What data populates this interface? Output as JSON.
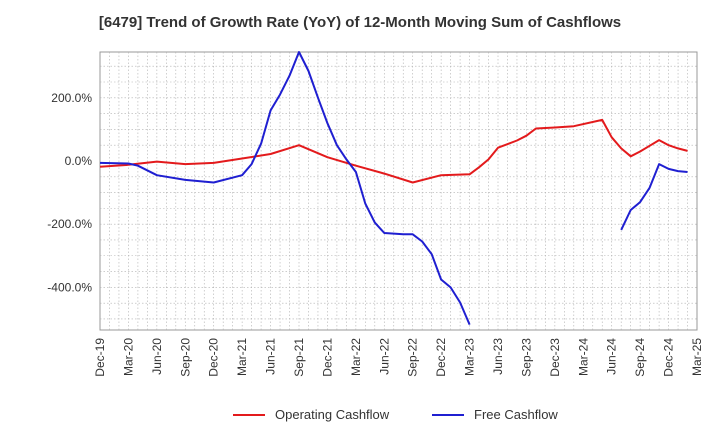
{
  "chart_data": {
    "type": "line",
    "title": "[6479]  Trend of Growth Rate (YoY) of 12-Month Moving Sum of Cashflows",
    "xlabel": "",
    "ylabel": "",
    "x_tick_labels": [
      "Dec-19",
      "Mar-20",
      "Jun-20",
      "Sep-20",
      "Dec-20",
      "Mar-21",
      "Jun-21",
      "Sep-21",
      "Dec-21",
      "Mar-22",
      "Jun-22",
      "Sep-22",
      "Dec-22",
      "Mar-23",
      "Jun-23",
      "Sep-23",
      "Dec-23",
      "Mar-24",
      "Jun-24",
      "Sep-24",
      "Dec-24",
      "Mar-25"
    ],
    "y_ticks": [
      200,
      0,
      -200,
      -400
    ],
    "y_tick_labels": [
      "200.0%",
      "0.0%",
      "-200.0%",
      "-400.0%"
    ],
    "ylim": [
      -535,
      345
    ],
    "x_range": [
      0,
      63
    ],
    "grid": true,
    "legend_position": "bottom-center",
    "series": [
      {
        "name": "Operating Cashflow",
        "color": "#e31a1c",
        "points": [
          [
            0,
            -18
          ],
          [
            3,
            -12
          ],
          [
            6,
            -2
          ],
          [
            9,
            -10
          ],
          [
            12,
            -6
          ],
          [
            15,
            8
          ],
          [
            18,
            22
          ],
          [
            21,
            50
          ],
          [
            24,
            12
          ],
          [
            27,
            -15
          ],
          [
            30,
            -40
          ],
          [
            33,
            -68
          ],
          [
            36,
            -45
          ],
          [
            39,
            -42
          ],
          [
            40,
            -20
          ],
          [
            41,
            5
          ],
          [
            42,
            42
          ],
          [
            44,
            65
          ],
          [
            45,
            80
          ],
          [
            46,
            103
          ],
          [
            48,
            106
          ],
          [
            50,
            110
          ],
          [
            53,
            130
          ],
          [
            54,
            75
          ],
          [
            55,
            40
          ],
          [
            56,
            15
          ],
          [
            57,
            30
          ],
          [
            58,
            48
          ],
          [
            59,
            66
          ],
          [
            60,
            50
          ],
          [
            61,
            40
          ],
          [
            62,
            32
          ]
        ]
      },
      {
        "name": "Free Cashflow",
        "color": "#1f1fd1",
        "points": [
          [
            0,
            -6
          ],
          [
            3,
            -8
          ],
          [
            4,
            -15
          ],
          [
            6,
            -45
          ],
          [
            9,
            -60
          ],
          [
            12,
            -68
          ],
          [
            15,
            -45
          ],
          [
            16,
            -10
          ],
          [
            17,
            55
          ],
          [
            18,
            160
          ],
          [
            19,
            210
          ],
          [
            20,
            270
          ],
          [
            21,
            345
          ],
          [
            22,
            285
          ],
          [
            23,
            200
          ],
          [
            24,
            120
          ],
          [
            25,
            50
          ],
          [
            26,
            5
          ],
          [
            27,
            -35
          ],
          [
            28,
            -135
          ],
          [
            29,
            -195
          ],
          [
            30,
            -228
          ],
          [
            31,
            -230
          ],
          [
            32,
            -232
          ],
          [
            33,
            -232
          ],
          [
            34,
            -255
          ],
          [
            35,
            -295
          ],
          [
            36,
            -375
          ],
          [
            37,
            -400
          ],
          [
            38,
            -448
          ],
          [
            39,
            -518
          ]
        ]
      },
      {
        "name": "Free Cashflow",
        "color": "#1f1fd1",
        "points": [
          [
            55,
            -218
          ],
          [
            56,
            -155
          ],
          [
            57,
            -130
          ],
          [
            58,
            -85
          ],
          [
            59,
            -10
          ],
          [
            60,
            -25
          ],
          [
            61,
            -32
          ],
          [
            62,
            -35
          ]
        ]
      }
    ]
  }
}
